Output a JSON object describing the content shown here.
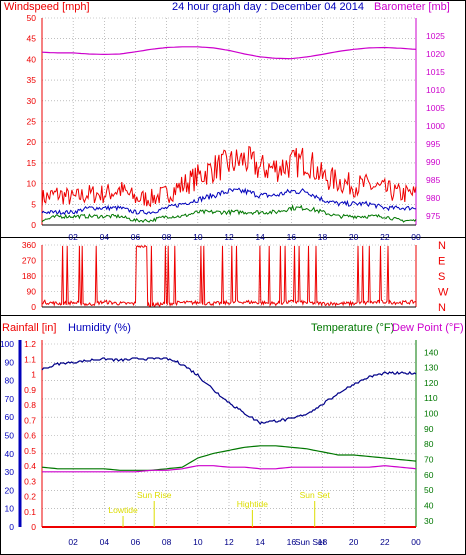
{
  "title": "24 hour graph day : December 04 2014",
  "colors": {
    "red": "#ee0000",
    "magenta": "#cc00cc",
    "blue": "#0000bb",
    "green": "#007700",
    "darkblue": "#000088",
    "yellow": "#dddd00",
    "grid": "#999999"
  },
  "chart_data": [
    {
      "type": "line",
      "panel": "wind-barometer",
      "labels": {
        "left": "Windspeed [mph]",
        "right": "Barometer [mb]"
      },
      "x_ticks": [
        "02",
        "04",
        "06",
        "08",
        "10",
        "12",
        "14",
        "16",
        "18",
        "20",
        "22",
        "00"
      ],
      "y_left_ticks": [
        "0",
        "5",
        "10",
        "15",
        "20",
        "25",
        "30",
        "35",
        "40",
        "45",
        "50"
      ],
      "y_left_range": [
        0,
        50
      ],
      "y_right_ticks": [
        "975",
        "980",
        "985",
        "990",
        "995",
        "1000",
        "1005",
        "1010",
        "1015",
        "1020",
        "1025"
      ],
      "y_right_range": [
        972.5,
        1030
      ],
      "grid": true,
      "x_hours": [
        0,
        1,
        2,
        3,
        4,
        5,
        6,
        7,
        8,
        9,
        10,
        11,
        12,
        13,
        14,
        15,
        16,
        17,
        18,
        19,
        20,
        21,
        22,
        23,
        24
      ],
      "series": [
        {
          "role": "gust",
          "color": "red",
          "values": [
            6,
            7,
            6,
            7,
            7,
            8,
            6,
            6,
            7,
            9,
            11,
            13,
            14,
            15,
            13,
            13,
            14,
            15,
            11,
            10,
            9,
            9,
            8,
            7,
            7
          ]
        },
        {
          "role": "average",
          "color": "blue",
          "values": [
            3,
            3,
            3,
            4,
            4,
            4,
            3,
            3,
            4,
            5,
            6,
            7,
            8,
            8,
            7,
            7,
            8,
            8,
            6,
            5,
            5,
            5,
            4,
            4,
            4
          ]
        },
        {
          "role": "low",
          "color": "green",
          "values": [
            1,
            2,
            2,
            2,
            2,
            2,
            1,
            1,
            2,
            2,
            3,
            3,
            3,
            3,
            3,
            3,
            4,
            4,
            3,
            2,
            2,
            2,
            2,
            1,
            1
          ]
        },
        {
          "role": "barometer",
          "color": "magenta",
          "values": [
            1020.5,
            1020.3,
            1020.3,
            1020.0,
            1019.9,
            1020.0,
            1020.6,
            1021.3,
            1021.8,
            1022.0,
            1022.0,
            1021.7,
            1021.0,
            1020.0,
            1019.2,
            1018.8,
            1018.7,
            1019.2,
            1019.9,
            1020.7,
            1021.3,
            1021.7,
            1021.8,
            1021.6,
            1021.3
          ]
        }
      ]
    },
    {
      "type": "line",
      "panel": "wind-direction",
      "y_left_ticks": [
        "0",
        "90",
        "180",
        "270",
        "360"
      ],
      "y_right_letters": [
        "N",
        "W",
        "S",
        "E",
        "N"
      ],
      "y_range": [
        0,
        360
      ],
      "grid": true,
      "x_hours": [
        0,
        1,
        2,
        3,
        4,
        5,
        6,
        7,
        8,
        9,
        10,
        11,
        12,
        13,
        14,
        15,
        16,
        17,
        18,
        19,
        20,
        21,
        22,
        23,
        24
      ],
      "series": [
        {
          "role": "direction",
          "color": "red",
          "values": [
            30,
            20,
            25,
            15,
            30,
            20,
            20,
            10,
            20,
            25,
            25,
            20,
            25,
            30,
            25,
            20,
            30,
            25,
            20,
            20,
            20,
            25,
            30,
            25,
            30
          ]
        }
      ]
    },
    {
      "type": "line",
      "panel": "rain-humidity-temp",
      "labels": {
        "rain": "Rainfall [in]",
        "humidity": "Humidity (%)",
        "temperature": "Temperature (°F)",
        "dewpoint": "Dew Point (°F)"
      },
      "y_rain_ticks": [
        "0",
        "0.1",
        "0.2",
        "0.3",
        "0.4",
        "0.5",
        "0.6",
        "0.7",
        "0.8",
        "0.9",
        "1",
        "1.1",
        "1.2"
      ],
      "y_rain_range": [
        0,
        1.2
      ],
      "y_humidity_ticks": [
        "0",
        "10",
        "20",
        "30",
        "40",
        "50",
        "60",
        "70",
        "80",
        "90",
        "100"
      ],
      "y_humidity_range": [
        0,
        100
      ],
      "y_temp_ticks": [
        "30",
        "40",
        "50",
        "60",
        "70",
        "80",
        "90",
        "100",
        "110",
        "120",
        "130",
        "140"
      ],
      "y_temp_range": [
        26,
        148
      ],
      "x_ticks": [
        "02",
        "04",
        "06",
        "08",
        "10",
        "12",
        "14",
        "16",
        "18",
        "20",
        "22",
        "00"
      ],
      "grid": true,
      "x_hours": [
        0,
        1,
        2,
        3,
        4,
        5,
        6,
        7,
        8,
        9,
        10,
        11,
        12,
        13,
        14,
        15,
        16,
        17,
        18,
        19,
        20,
        21,
        22,
        23,
        24
      ],
      "series": [
        {
          "role": "humidity",
          "color": "darkblue",
          "values": [
            86,
            89,
            90,
            91,
            92,
            91,
            92,
            92,
            92,
            89,
            83,
            75,
            68,
            62,
            57,
            58,
            59,
            62,
            67,
            73,
            78,
            82,
            84,
            84,
            84
          ]
        },
        {
          "role": "temperature",
          "color": "green",
          "values": [
            65,
            64,
            64,
            64,
            64,
            63,
            63,
            63,
            64,
            65,
            71,
            74,
            76,
            78,
            79,
            79,
            78,
            77,
            75,
            73,
            73,
            72,
            71,
            70,
            69
          ]
        },
        {
          "role": "dewpoint",
          "color": "magenta",
          "values": [
            62,
            62,
            62,
            62,
            62,
            62,
            62,
            63,
            63,
            64,
            66,
            66,
            65,
            65,
            64,
            64,
            65,
            65,
            65,
            65,
            65,
            65,
            66,
            65,
            64
          ]
        },
        {
          "role": "rainfall",
          "color": "red",
          "values": [
            0,
            0,
            0,
            0,
            0,
            0,
            0,
            0,
            0,
            0,
            0,
            0,
            0,
            0,
            0,
            0,
            0,
            0,
            0,
            0,
            0,
            0,
            0,
            0,
            0
          ]
        }
      ],
      "annotations": [
        {
          "text": "Lowtide",
          "hour": 5.2,
          "row": "low"
        },
        {
          "text": "Sun Rise",
          "hour": 7.2,
          "row": "high"
        },
        {
          "text": "Hightide",
          "hour": 13.5,
          "row": "mid"
        },
        {
          "text": "Sun Set",
          "hour": 17.5,
          "row": "high"
        },
        {
          "text": "Sun Set",
          "hour": 17.2,
          "row": "bottom"
        }
      ]
    }
  ]
}
